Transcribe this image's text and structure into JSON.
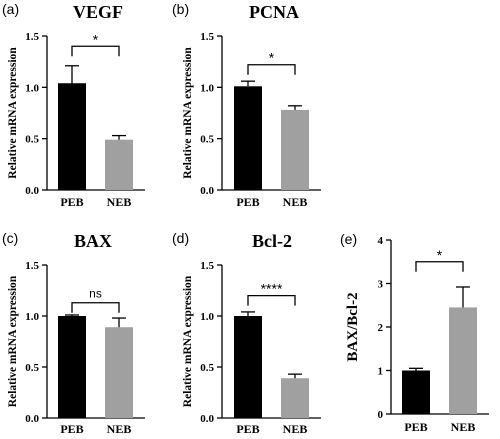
{
  "chart_data": [
    {
      "panel": "(a)",
      "type": "bar",
      "title": "VEGF",
      "ylabel": "Relative mRNA expression",
      "xlabel": "",
      "categories": [
        "PEB",
        "NEB"
      ],
      "values": [
        1.04,
        0.49
      ],
      "errors": [
        0.17,
        0.04
      ],
      "colors": [
        "#000000",
        "#a0a0a0"
      ],
      "ylim": [
        0,
        1.5
      ],
      "yticks": [
        0,
        0.5,
        1.0,
        1.5
      ],
      "ytick_labels": [
        "0.0",
        "0.5",
        "1.0",
        "1.5"
      ],
      "significance": "*",
      "significance_y": 1.4
    },
    {
      "panel": "(b)",
      "type": "bar",
      "title": "PCNA",
      "ylabel": "Relative mRNA expression",
      "xlabel": "",
      "categories": [
        "PEB",
        "NEB"
      ],
      "values": [
        1.01,
        0.78
      ],
      "errors": [
        0.05,
        0.04
      ],
      "colors": [
        "#000000",
        "#a0a0a0"
      ],
      "ylim": [
        0,
        1.5
      ],
      "yticks": [
        0,
        0.5,
        1.0,
        1.5
      ],
      "ytick_labels": [
        "0.0",
        "0.5",
        "1.0",
        "1.5"
      ],
      "significance": "*",
      "significance_y": 1.22
    },
    {
      "panel": "(c)",
      "type": "bar",
      "title": "BAX",
      "ylabel": "Relative mRNA expression",
      "xlabel": "",
      "categories": [
        "PEB",
        "NEB"
      ],
      "values": [
        1.0,
        0.89
      ],
      "errors": [
        0.01,
        0.09
      ],
      "colors": [
        "#000000",
        "#a0a0a0"
      ],
      "ylim": [
        0,
        1.5
      ],
      "yticks": [
        0,
        0.5,
        1.0,
        1.5
      ],
      "ytick_labels": [
        "0.0",
        "0.5",
        "1.0",
        "1.5"
      ],
      "significance": "ns",
      "significance_y": 1.13
    },
    {
      "panel": "(d)",
      "type": "bar",
      "title": "Bcl-2",
      "ylabel": "Relative mRNA expression",
      "xlabel": "",
      "categories": [
        "PEB",
        "NEB"
      ],
      "values": [
        1.0,
        0.39
      ],
      "errors": [
        0.04,
        0.04
      ],
      "colors": [
        "#000000",
        "#a0a0a0"
      ],
      "ylim": [
        0,
        1.5
      ],
      "yticks": [
        0,
        0.5,
        1.0,
        1.5
      ],
      "ytick_labels": [
        "0.0",
        "0.5",
        "1.0",
        "1.5"
      ],
      "significance": "****",
      "significance_y": 1.2
    },
    {
      "panel": "(e)",
      "type": "bar",
      "title": "",
      "ylabel": "BAX/Bcl-2",
      "xlabel": "",
      "categories": [
        "PEB",
        "NEB"
      ],
      "values": [
        1.0,
        2.45
      ],
      "errors": [
        0.05,
        0.47
      ],
      "colors": [
        "#000000",
        "#a0a0a0"
      ],
      "ylim": [
        0,
        4
      ],
      "yticks": [
        0,
        1,
        2,
        3,
        4
      ],
      "ytick_labels": [
        "0",
        "1",
        "2",
        "3",
        "4"
      ],
      "significance": "*",
      "significance_y": 3.5
    }
  ]
}
